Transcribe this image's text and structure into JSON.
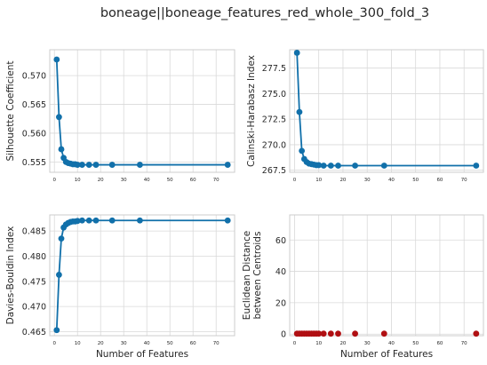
{
  "figure": {
    "title": "boneage||boneage_features_red_whole_300_fold_3"
  },
  "chart_data": [
    {
      "type": "line",
      "xlabel": "",
      "ylabel": "Silhouette Coefficient",
      "xlim": [
        -2,
        78
      ],
      "ylim": [
        0.5532,
        0.5745
      ],
      "xticks": [
        0,
        10,
        20,
        30,
        40,
        50,
        60,
        70
      ],
      "yticks": [
        0.555,
        0.56,
        0.565,
        0.57
      ],
      "ytick_labels": [
        "0.555",
        "0.560",
        "0.565",
        "0.570"
      ],
      "grid": true,
      "color": "#1170aa",
      "x": [
        1,
        2,
        3,
        4,
        5,
        6,
        7,
        8,
        9,
        10,
        12,
        15,
        18,
        25,
        37,
        75
      ],
      "y": [
        0.5728,
        0.5628,
        0.5572,
        0.5557,
        0.555,
        0.5548,
        0.5547,
        0.5546,
        0.5546,
        0.5545,
        0.5545,
        0.5545,
        0.5545,
        0.5545,
        0.5545,
        0.5545
      ]
    },
    {
      "type": "line",
      "xlabel": "",
      "ylabel": "Calinski-Harabasz Index",
      "xlim": [
        -2,
        78
      ],
      "ylim": [
        267.3,
        279.3
      ],
      "xticks": [
        0,
        10,
        20,
        30,
        40,
        50,
        60,
        70
      ],
      "yticks": [
        267.5,
        270.0,
        272.5,
        275.0,
        277.5
      ],
      "ytick_labels": [
        "267.5",
        "270.0",
        "272.5",
        "275.0",
        "277.5"
      ],
      "grid": true,
      "color": "#1170aa",
      "x": [
        1,
        2,
        3,
        4,
        5,
        6,
        7,
        8,
        9,
        10,
        12,
        15,
        18,
        25,
        37,
        75
      ],
      "y": [
        279.0,
        273.2,
        269.4,
        268.6,
        268.3,
        268.15,
        268.1,
        268.05,
        268.0,
        268.0,
        267.95,
        267.95,
        267.95,
        267.95,
        267.95,
        267.95
      ]
    },
    {
      "type": "line",
      "xlabel": "Number of Features",
      "ylabel": "Davies-Bouldin Index",
      "xlim": [
        -2,
        78
      ],
      "ylim": [
        0.4642,
        0.4882
      ],
      "xticks": [
        0,
        10,
        20,
        30,
        40,
        50,
        60,
        70
      ],
      "yticks": [
        0.465,
        0.47,
        0.475,
        0.48,
        0.485
      ],
      "ytick_labels": [
        "0.465",
        "0.470",
        "0.475",
        "0.480",
        "0.485"
      ],
      "grid": true,
      "color": "#1170aa",
      "x": [
        1,
        2,
        3,
        4,
        5,
        6,
        7,
        8,
        9,
        10,
        12,
        15,
        18,
        25,
        37,
        75
      ],
      "y": [
        0.4653,
        0.4763,
        0.4835,
        0.4857,
        0.4863,
        0.4866,
        0.4868,
        0.4869,
        0.4869,
        0.487,
        0.4871,
        0.4871,
        0.4871,
        0.4871,
        0.4871,
        0.4871
      ]
    },
    {
      "type": "scatter",
      "xlabel": "Number of Features",
      "ylabel": "Euclidean Distance between Centroids",
      "ylabel_lines": [
        "Euclidean Distance",
        "between Centroids"
      ],
      "xlim": [
        -2,
        78
      ],
      "ylim": [
        -1,
        76
      ],
      "xticks": [
        0,
        10,
        20,
        30,
        40,
        50,
        60,
        70
      ],
      "yticks": [
        0,
        20,
        40,
        60
      ],
      "ytick_labels": [
        "0",
        "20",
        "40",
        "60"
      ],
      "grid": true,
      "color": "#b00f12",
      "x": [
        1,
        2,
        3,
        4,
        5,
        6,
        7,
        8,
        9,
        10,
        12,
        15,
        18,
        25,
        37,
        75
      ],
      "y": [
        0.3,
        0.3,
        0.3,
        0.3,
        0.3,
        0.3,
        0.3,
        0.3,
        0.3,
        0.3,
        0.3,
        0.3,
        0.3,
        0.3,
        0.3,
        0.3
      ]
    }
  ]
}
